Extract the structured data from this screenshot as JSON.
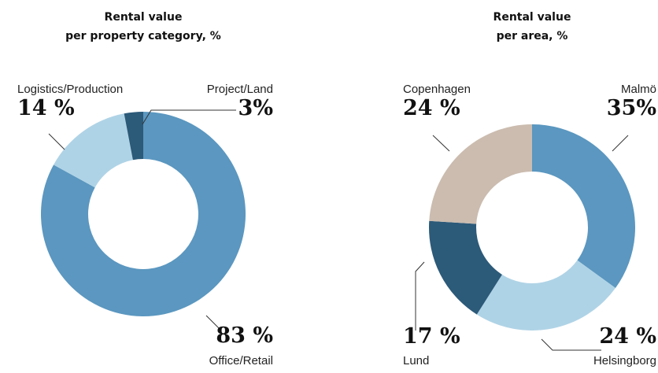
{
  "chart_data": [
    {
      "type": "pie",
      "title": [
        "Rental value",
        "per property category, %"
      ],
      "categories": [
        "Office/Retail",
        "Logistics/Production",
        "Project/Land"
      ],
      "values": [
        83,
        14,
        3
      ],
      "value_labels": [
        "83 %",
        "14 %",
        "3%"
      ],
      "colors": [
        "#5b97c0",
        "#afd3e6",
        "#2c5a79"
      ]
    },
    {
      "type": "pie",
      "title": [
        "Rental value",
        "per area, %"
      ],
      "categories": [
        "Malmö",
        "Helsingborg",
        "Lund",
        "Copenhagen"
      ],
      "values": [
        35,
        24,
        17,
        24
      ],
      "value_labels": [
        "35%",
        "24 %",
        "17 %",
        "24 %"
      ],
      "colors": [
        "#5b97c0",
        "#afd3e6",
        "#2c5a79",
        "#cbbcaf"
      ]
    }
  ]
}
